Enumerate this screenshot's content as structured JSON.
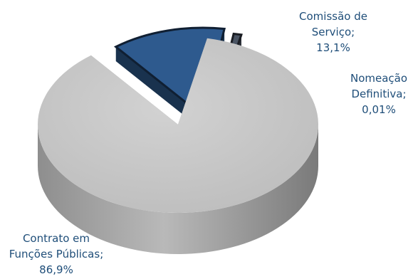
{
  "chart_data": {
    "type": "pie",
    "style": "3d-exploded",
    "slices": [
      {
        "name": "Contrato em Funções Públicas",
        "label_lines": [
          "Contrato em",
          "Funções Públicas;",
          "86,9%"
        ],
        "value": 86.9,
        "color": "#bfbfbf"
      },
      {
        "name": "Comissão de Serviço",
        "label_lines": [
          "Comissão de",
          "Serviço;",
          "13,1%"
        ],
        "value": 13.1,
        "color": "#2e5a8e"
      },
      {
        "name": "Nomeação Definitiva",
        "label_lines": [
          "Nomeação",
          "Definitiva;",
          "0,01%"
        ],
        "value": 0.01,
        "color": "#4a5463"
      }
    ],
    "label_color": "#1f4e79",
    "legend": "none"
  }
}
